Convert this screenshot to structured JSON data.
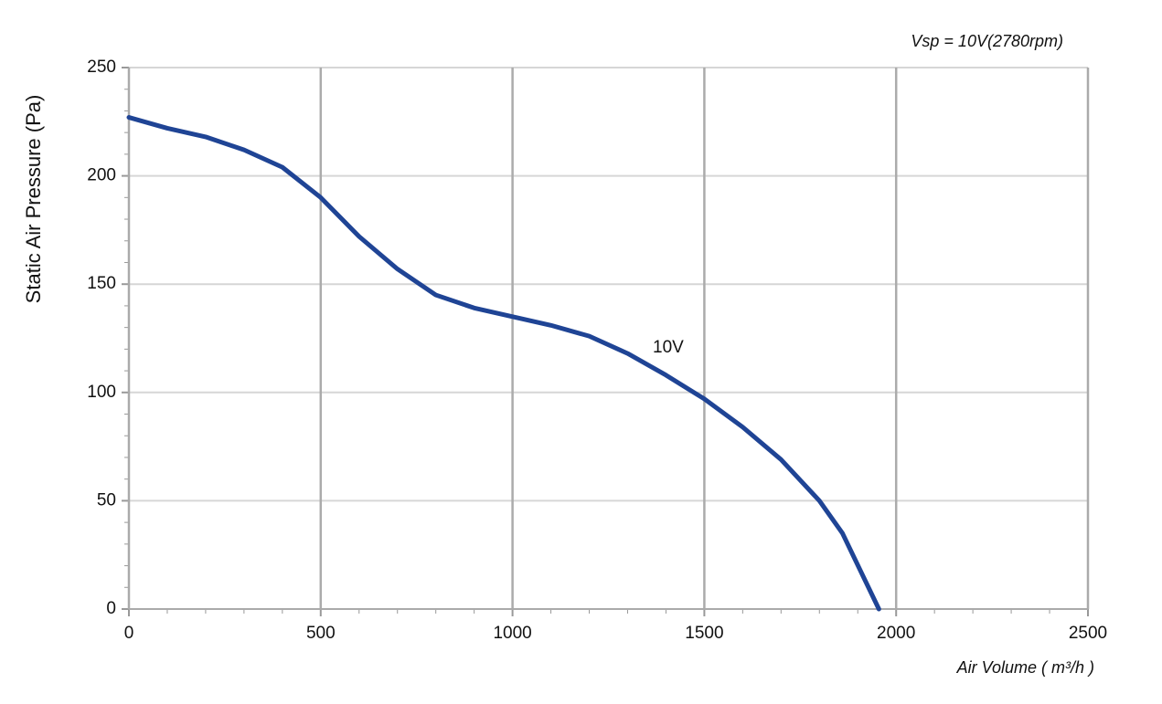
{
  "chart_data": {
    "type": "line",
    "title": "Vsp = 10V(2780rpm)",
    "x_label": "Air Volume ( m³/h )",
    "y_label": "Static Air Pressure  (Pa)",
    "annotation": "10V",
    "x": [
      0,
      100,
      200,
      300,
      400,
      500,
      600,
      700,
      800,
      900,
      1000,
      1100,
      1200,
      1300,
      1400,
      1500,
      1600,
      1700,
      1800,
      1860,
      1955
    ],
    "series": [
      {
        "name": "10V",
        "color": "#1f4495",
        "values": [
          227,
          222,
          218,
          212,
          204,
          190,
          172,
          157,
          145,
          139,
          135,
          131,
          126,
          118,
          108,
          97,
          84,
          69,
          50,
          35,
          0
        ]
      }
    ],
    "xlim": [
      0,
      2500
    ],
    "xticks": [
      0,
      500,
      1000,
      1500,
      2000,
      2500
    ],
    "ylim": [
      0,
      250
    ],
    "yticks": [
      0,
      50,
      100,
      150,
      200,
      250
    ],
    "grid": true
  }
}
